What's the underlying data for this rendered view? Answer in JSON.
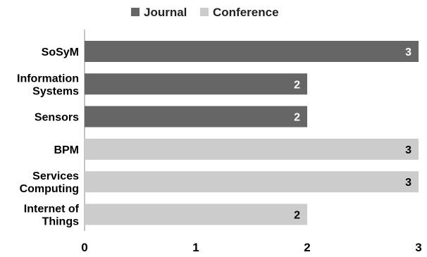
{
  "chart_data": {
    "type": "bar",
    "orientation": "horizontal",
    "title": "",
    "xlabel": "",
    "ylabel": "",
    "xlim": [
      0,
      3
    ],
    "xticks": [
      "0",
      "1",
      "2",
      "3"
    ],
    "grid": false,
    "legend_position": "top",
    "categories": [
      [
        "SoSyM"
      ],
      [
        "Information",
        "Systems"
      ],
      [
        "Sensors"
      ],
      [
        "BPM"
      ],
      [
        "Services",
        "Computing"
      ],
      [
        "Internet of",
        "Things"
      ]
    ],
    "values": [
      3,
      2,
      2,
      3,
      3,
      2
    ],
    "groups": [
      "Journal",
      "Journal",
      "Journal",
      "Conference",
      "Conference",
      "Conference"
    ],
    "legend": [
      {
        "name": "Journal",
        "color": "#666666",
        "label_color": "#ffffff"
      },
      {
        "name": "Conference",
        "color": "#cccccc",
        "label_color": "#000000"
      }
    ]
  }
}
